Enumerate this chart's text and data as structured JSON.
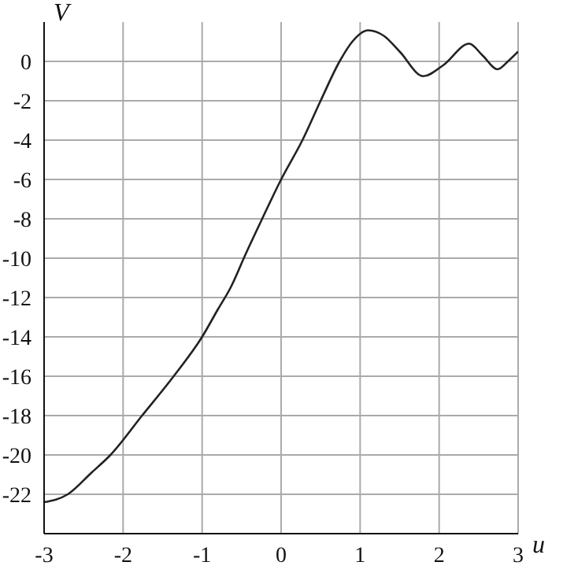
{
  "chart_data": {
    "type": "line",
    "xlabel": "u",
    "ylabel": "V",
    "x": [
      -3,
      -2.7,
      -2.4,
      -2.16,
      -1.76,
      -1.36,
      -1.0,
      -0.8,
      -0.64,
      -0.45,
      -0.24,
      0.0,
      0.27,
      0.5,
      0.74,
      0.9,
      1.1,
      1.3,
      1.5,
      1.8,
      2.05,
      2.38,
      2.55,
      2.74,
      2.87,
      3.0
    ],
    "series": [
      {
        "color": "#222222",
        "values": [
          -22.4,
          -22,
          -20.9,
          -20,
          -18,
          -16,
          -14,
          -12.6,
          -11.5,
          -9.8,
          -8,
          -6,
          -4,
          -2,
          0,
          1.0,
          1.58,
          1.3,
          0.5,
          -0.75,
          -0.2,
          0.9,
          0.3,
          -0.4,
          0.0,
          0.5
        ]
      }
    ],
    "xlim": [
      -3,
      3
    ],
    "xticks": [
      -3,
      -2,
      -1,
      0,
      1,
      2,
      3
    ],
    "ylim": [
      -24,
      2
    ],
    "yticks": [
      -22,
      -20,
      -18,
      -16,
      -14,
      -12,
      -10,
      -8,
      -6,
      -4,
      -2,
      0
    ],
    "grid": true,
    "marker": "none",
    "line_style": "solid"
  }
}
